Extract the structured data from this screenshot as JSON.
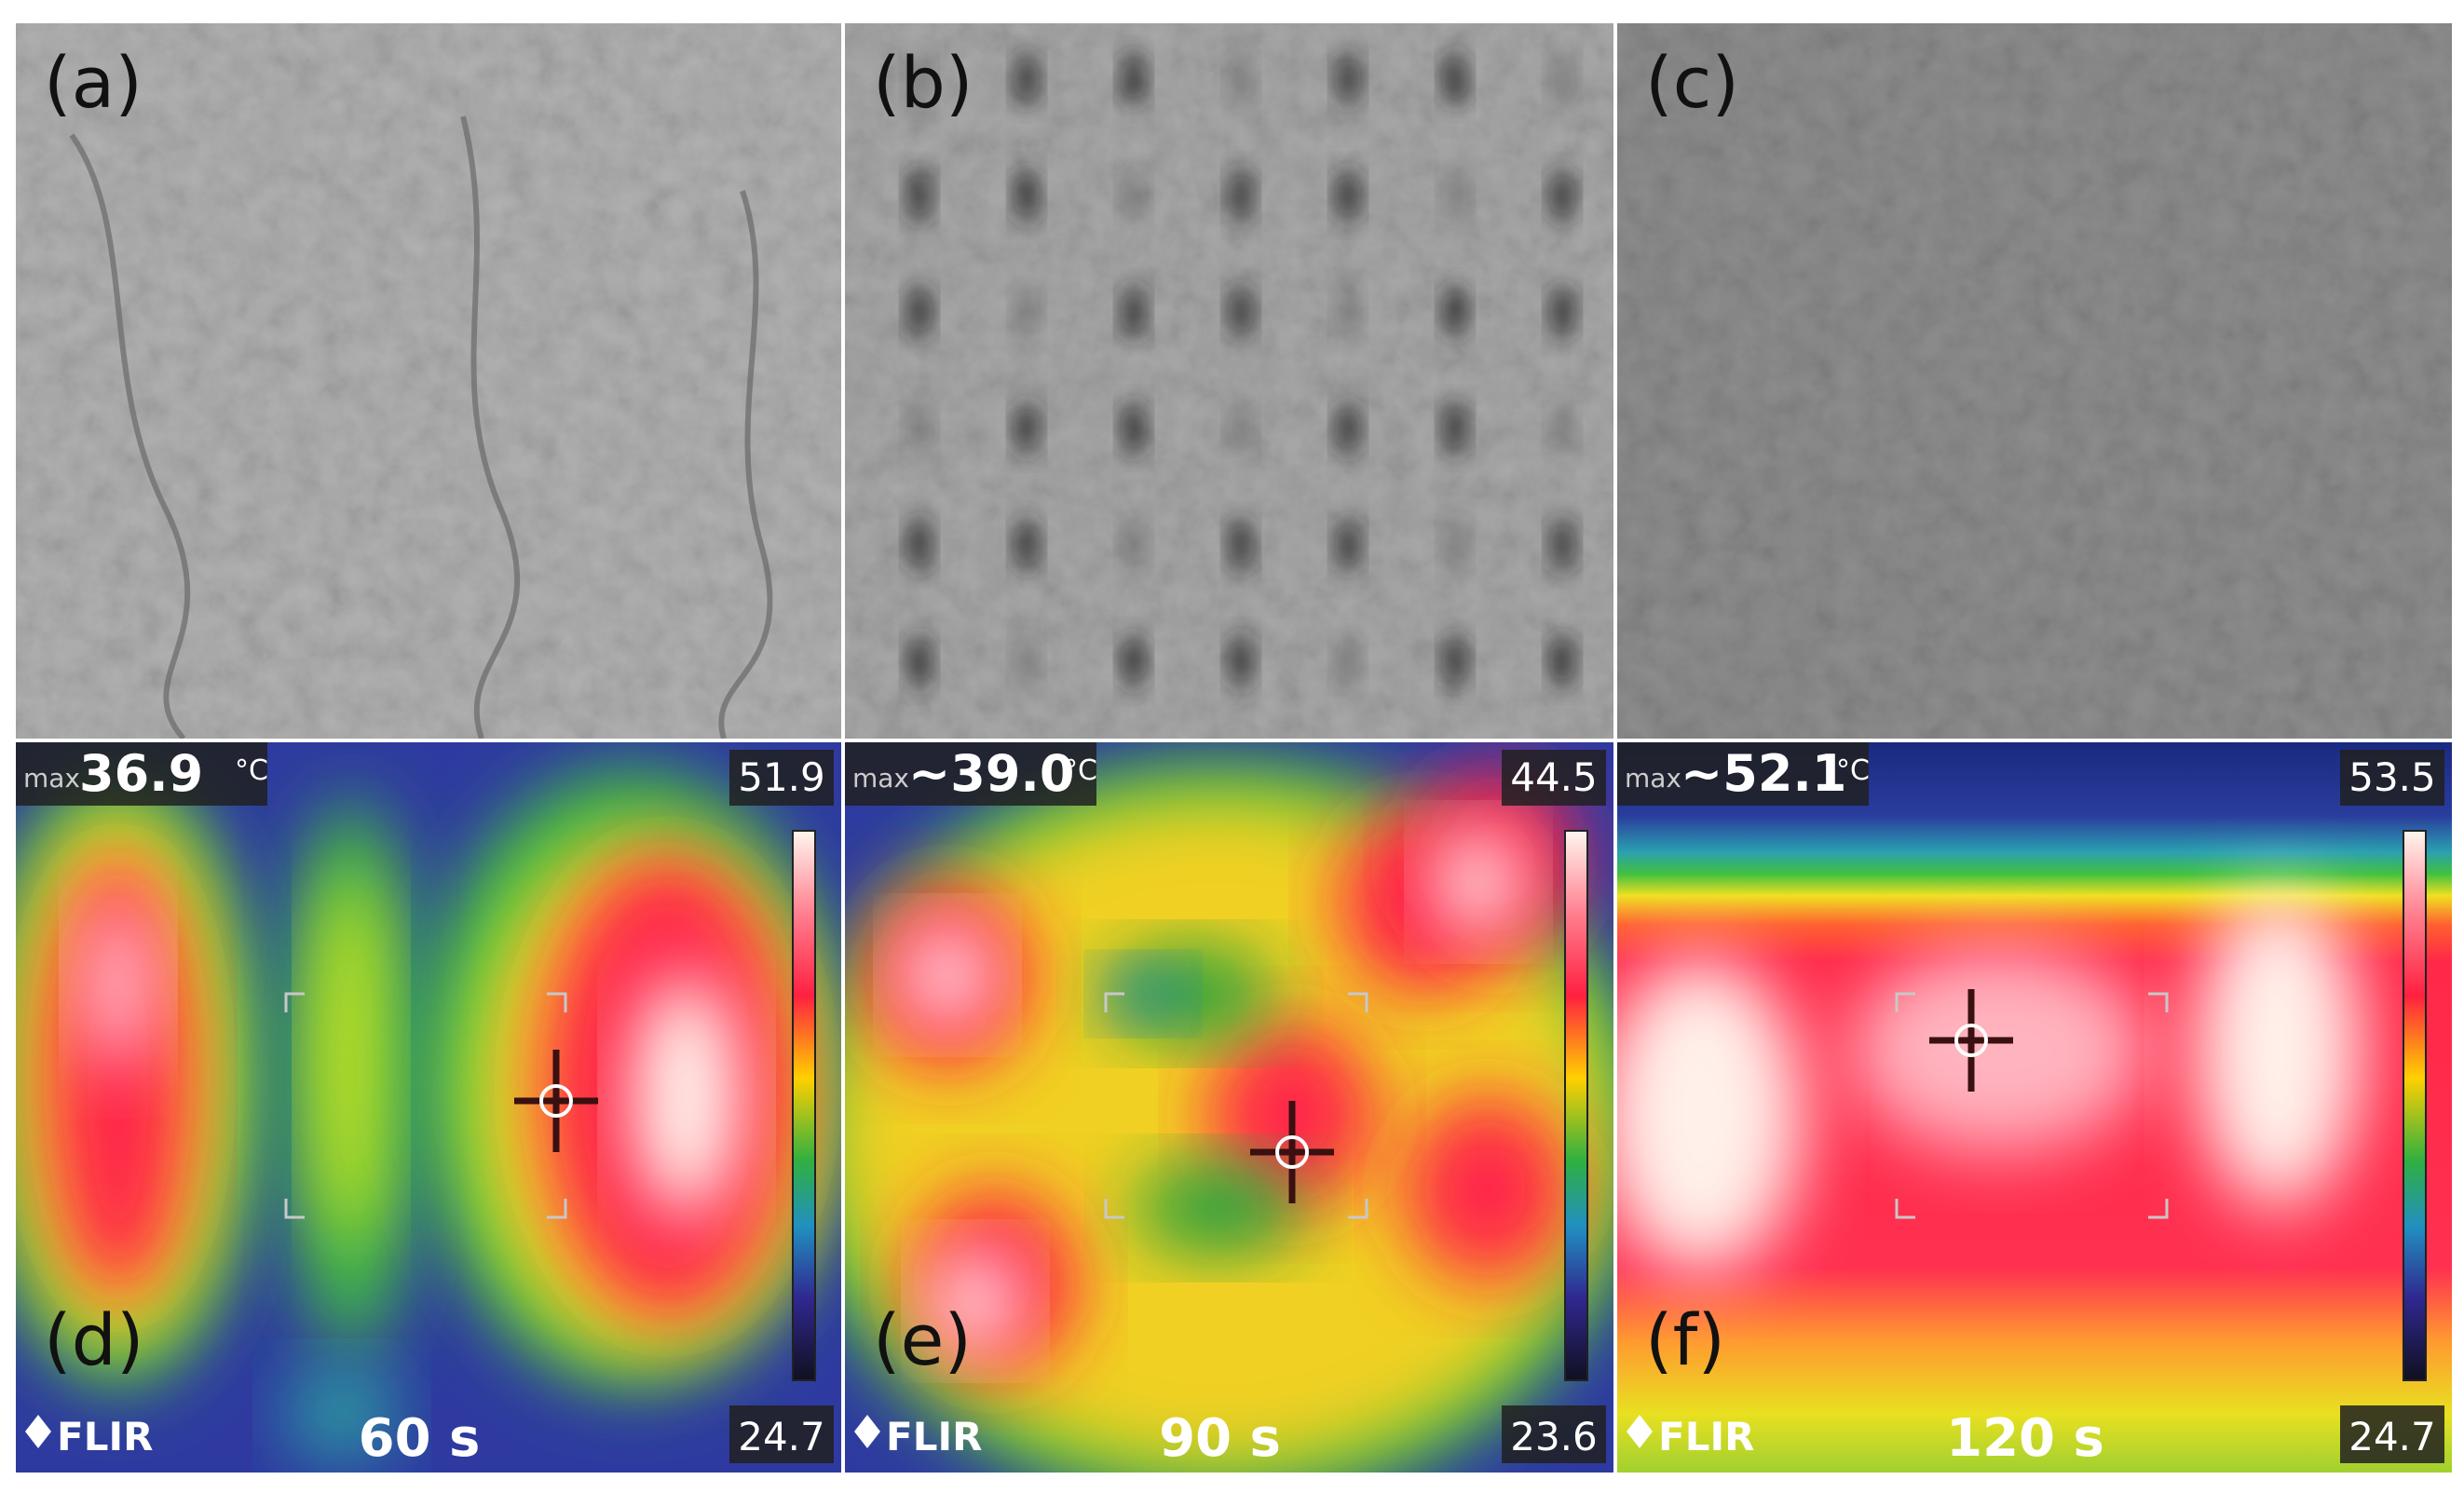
{
  "photos": [
    {
      "label": "(a)"
    },
    {
      "label": "(b)"
    },
    {
      "label": "(c)"
    }
  ],
  "thermal": [
    {
      "label": "(d)",
      "max_prefix": "max",
      "max_value": "36.9",
      "unit": "°C",
      "scale_max": "51.9",
      "scale_min": "24.7",
      "time": "60 s",
      "brand": "FLIR"
    },
    {
      "label": "(e)",
      "max_prefix": "max",
      "max_value": "~39.0",
      "unit": "°C",
      "scale_max": "44.5",
      "scale_min": "23.6",
      "time": "90 s",
      "brand": "FLIR"
    },
    {
      "label": "(f)",
      "max_prefix": "max",
      "max_value": "~52.1",
      "unit": "°C",
      "scale_max": "53.5",
      "scale_min": "24.7",
      "time": "120 s",
      "brand": "FLIR"
    }
  ]
}
